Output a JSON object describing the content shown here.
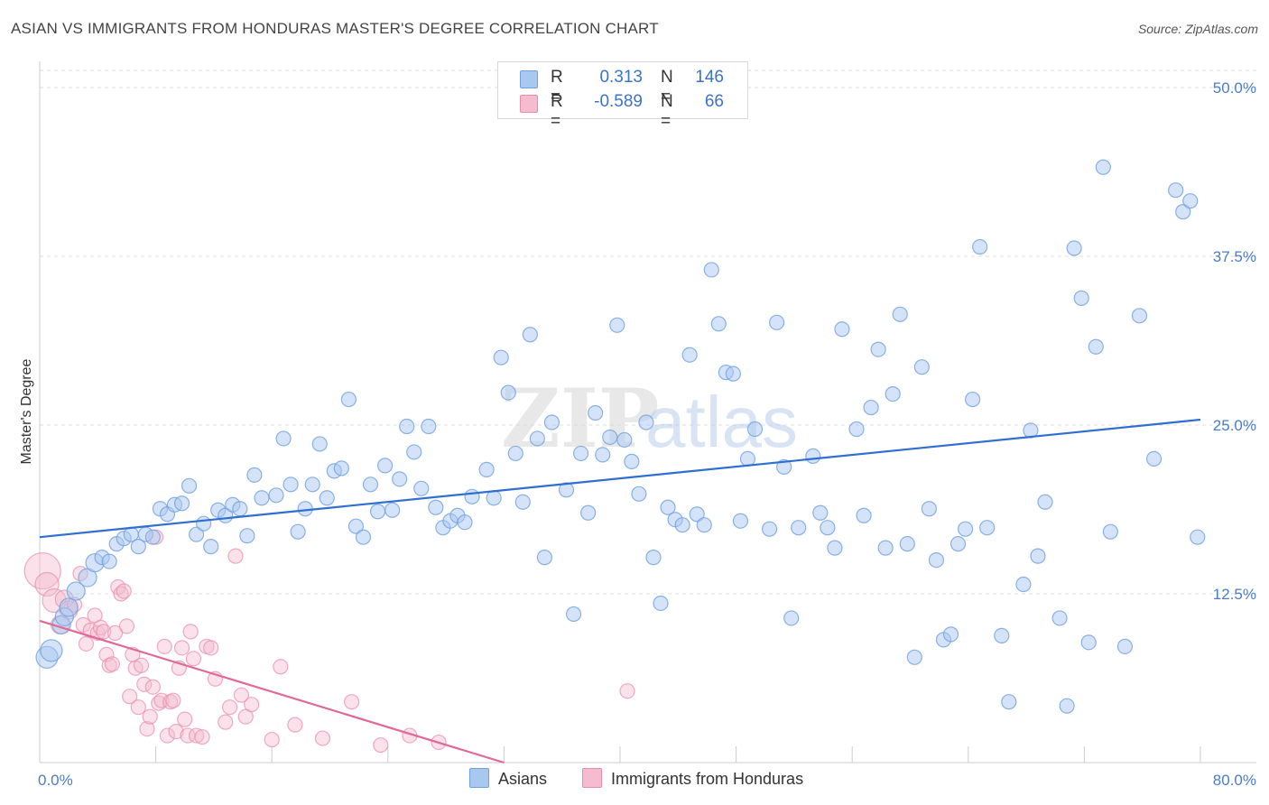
{
  "title": "ASIAN VS IMMIGRANTS FROM HONDURAS MASTER'S DEGREE CORRELATION CHART",
  "source": "Source: ZipAtlas.com",
  "watermark": {
    "zip": "ZIP",
    "atlas": "atlas"
  },
  "colors": {
    "asian": "#6fa0e0",
    "asian_fill": "#a9c8f0",
    "asian_line": "#2f6fd1",
    "honduras": "#e88aaa",
    "honduras_fill": "#f5bcd0",
    "honduras_line": "#e06a95",
    "tick_label": "#4a7cc9"
  },
  "stats": [
    {
      "r_label": "R =",
      "r_value": "0.313",
      "n_label": "N =",
      "n_value": "146"
    },
    {
      "r_label": "R =",
      "r_value": "-0.589",
      "n_label": "N =",
      "n_value": "66"
    }
  ],
  "legend": {
    "asian": "Asians",
    "honduras": "Immigrants from Honduras"
  },
  "chart_data": {
    "type": "scatter",
    "xlabel": "",
    "ylabel": "Master's Degree",
    "xlim": [
      0,
      80
    ],
    "ylim": [
      0,
      50
    ],
    "x_tick_labels": {
      "min": "0.0%",
      "max": "80.0%"
    },
    "y_ticks": [
      {
        "value": 50,
        "label": "50.0%"
      },
      {
        "value": 37.5,
        "label": "37.5%"
      },
      {
        "value": 25,
        "label": "25.0%"
      },
      {
        "value": 12.5,
        "label": "12.5%"
      }
    ],
    "grid": true,
    "legend_position": "bottom",
    "series": [
      {
        "name": "Asians",
        "trend": {
          "x1": 0,
          "y1": 16.7,
          "x2": 80,
          "y2": 25.4
        },
        "points": [
          [
            0.5,
            7.8
          ],
          [
            0.8,
            8.3
          ],
          [
            1.5,
            10.2
          ],
          [
            1.7,
            10.8
          ],
          [
            2,
            11.5
          ],
          [
            2.5,
            12.7
          ],
          [
            3.3,
            13.7
          ],
          [
            3.8,
            14.8
          ],
          [
            4.3,
            15.2
          ],
          [
            4.8,
            14.9
          ],
          [
            5.3,
            16.2
          ],
          [
            5.8,
            16.6
          ],
          [
            6.3,
            16.9
          ],
          [
            6.8,
            16
          ],
          [
            7.3,
            16.9
          ],
          [
            7.8,
            16.7
          ],
          [
            8.3,
            18.8
          ],
          [
            8.8,
            18.4
          ],
          [
            9.3,
            19.1
          ],
          [
            9.8,
            19.2
          ],
          [
            10.3,
            20.5
          ],
          [
            10.8,
            16.9
          ],
          [
            11.3,
            17.7
          ],
          [
            11.8,
            16
          ],
          [
            12.3,
            18.7
          ],
          [
            12.8,
            18.3
          ],
          [
            13.3,
            19.1
          ],
          [
            13.8,
            18.8
          ],
          [
            14.3,
            16.8
          ],
          [
            14.8,
            21.3
          ],
          [
            15.3,
            19.6
          ],
          [
            16.3,
            19.8
          ],
          [
            16.8,
            24
          ],
          [
            17.3,
            20.6
          ],
          [
            17.8,
            17.1
          ],
          [
            18.3,
            18.8
          ],
          [
            18.8,
            20.6
          ],
          [
            19.3,
            23.6
          ],
          [
            19.8,
            19.6
          ],
          [
            20.3,
            21.6
          ],
          [
            20.8,
            21.8
          ],
          [
            21.3,
            26.9
          ],
          [
            21.8,
            17.5
          ],
          [
            22.3,
            16.7
          ],
          [
            22.8,
            20.6
          ],
          [
            23.3,
            18.6
          ],
          [
            23.8,
            22
          ],
          [
            24.3,
            18.7
          ],
          [
            24.8,
            21
          ],
          [
            25.3,
            24.9
          ],
          [
            25.8,
            23
          ],
          [
            26.3,
            20.3
          ],
          [
            26.8,
            24.9
          ],
          [
            27.3,
            18.9
          ],
          [
            27.8,
            17.4
          ],
          [
            28.3,
            17.9
          ],
          [
            28.8,
            18.3
          ],
          [
            29.3,
            17.8
          ],
          [
            29.8,
            19.7
          ],
          [
            30.8,
            21.7
          ],
          [
            31.3,
            19.6
          ],
          [
            31.8,
            30
          ],
          [
            32.3,
            27.4
          ],
          [
            32.8,
            22.9
          ],
          [
            33.3,
            19.3
          ],
          [
            33.8,
            31.7
          ],
          [
            34.3,
            24
          ],
          [
            34.8,
            15.2
          ],
          [
            35.3,
            25.2
          ],
          [
            36.3,
            20.2
          ],
          [
            36.8,
            11
          ],
          [
            37.3,
            22.9
          ],
          [
            37.8,
            18.5
          ],
          [
            38.3,
            25.9
          ],
          [
            38.8,
            22.8
          ],
          [
            39.3,
            24.1
          ],
          [
            39.8,
            32.4
          ],
          [
            40.3,
            23.9
          ],
          [
            40.8,
            22.3
          ],
          [
            41.3,
            19.9
          ],
          [
            41.8,
            25.2
          ],
          [
            42.3,
            15.2
          ],
          [
            42.8,
            11.8
          ],
          [
            43.3,
            18.9
          ],
          [
            43.8,
            18
          ],
          [
            44.3,
            17.6
          ],
          [
            44.8,
            30.2
          ],
          [
            45.3,
            18.4
          ],
          [
            45.8,
            17.6
          ],
          [
            46.3,
            36.5
          ],
          [
            46.8,
            32.5
          ],
          [
            47.3,
            28.9
          ],
          [
            47.8,
            28.8
          ],
          [
            48.3,
            17.9
          ],
          [
            48.8,
            22.5
          ],
          [
            49.3,
            24.7
          ],
          [
            50.3,
            17.3
          ],
          [
            50.8,
            32.6
          ],
          [
            51.3,
            21.9
          ],
          [
            51.8,
            10.7
          ],
          [
            52.3,
            17.4
          ],
          [
            53.3,
            22.7
          ],
          [
            53.8,
            18.5
          ],
          [
            54.3,
            17.4
          ],
          [
            54.8,
            15.9
          ],
          [
            55.3,
            32.1
          ],
          [
            56.3,
            24.7
          ],
          [
            56.8,
            18.3
          ],
          [
            57.3,
            26.3
          ],
          [
            57.8,
            30.6
          ],
          [
            58.3,
            15.9
          ],
          [
            58.8,
            27.3
          ],
          [
            59.3,
            33.2
          ],
          [
            59.8,
            16.2
          ],
          [
            60.3,
            7.8
          ],
          [
            60.8,
            29.3
          ],
          [
            61.3,
            18.8
          ],
          [
            61.8,
            15
          ],
          [
            62.3,
            9.1
          ],
          [
            62.8,
            9.5
          ],
          [
            63.3,
            16.2
          ],
          [
            63.8,
            17.3
          ],
          [
            64.3,
            26.9
          ],
          [
            64.8,
            38.2
          ],
          [
            65.3,
            17.4
          ],
          [
            66.3,
            9.4
          ],
          [
            66.8,
            4.5
          ],
          [
            67.8,
            13.2
          ],
          [
            68.3,
            24.6
          ],
          [
            68.8,
            15.3
          ],
          [
            69.3,
            19.3
          ],
          [
            70.3,
            10.7
          ],
          [
            70.8,
            4.2
          ],
          [
            71.3,
            38.1
          ],
          [
            71.8,
            34.4
          ],
          [
            72.3,
            8.9
          ],
          [
            72.8,
            30.8
          ],
          [
            73.3,
            44.1
          ],
          [
            73.8,
            17.1
          ],
          [
            74.8,
            8.6
          ],
          [
            75.8,
            33.1
          ],
          [
            76.8,
            22.5
          ],
          [
            78.3,
            42.4
          ],
          [
            78.8,
            40.8
          ],
          [
            79.3,
            41.6
          ],
          [
            79.8,
            16.7
          ]
        ]
      },
      {
        "name": "Immigrants from Honduras",
        "trend": {
          "x1": 0,
          "y1": 10.5,
          "x2": 32,
          "y2": 0
        },
        "points": [
          [
            0.2,
            14.2
          ],
          [
            0.5,
            13.2
          ],
          [
            1,
            12
          ],
          [
            1.4,
            10.2
          ],
          [
            1.7,
            12.1
          ],
          [
            2,
            11.3
          ],
          [
            2.4,
            11.7
          ],
          [
            2.8,
            14
          ],
          [
            3,
            10.2
          ],
          [
            3.2,
            8.8
          ],
          [
            3.5,
            9.8
          ],
          [
            3.8,
            10.9
          ],
          [
            4,
            9.6
          ],
          [
            4.2,
            10
          ],
          [
            4.4,
            9.7
          ],
          [
            4.6,
            8
          ],
          [
            4.8,
            7.2
          ],
          [
            5,
            7.3
          ],
          [
            5.2,
            9.6
          ],
          [
            5.4,
            13
          ],
          [
            5.6,
            12.5
          ],
          [
            5.8,
            12.7
          ],
          [
            6,
            10.1
          ],
          [
            6.2,
            4.9
          ],
          [
            6.4,
            8
          ],
          [
            6.6,
            7
          ],
          [
            6.8,
            4.1
          ],
          [
            7,
            7.2
          ],
          [
            7.2,
            5.8
          ],
          [
            7.4,
            2.5
          ],
          [
            7.6,
            3.4
          ],
          [
            7.8,
            5.6
          ],
          [
            8,
            16.7
          ],
          [
            8.2,
            4.4
          ],
          [
            8.4,
            4.6
          ],
          [
            8.6,
            8.6
          ],
          [
            8.8,
            2
          ],
          [
            9,
            4.5
          ],
          [
            9.2,
            4.6
          ],
          [
            9.4,
            2.3
          ],
          [
            9.6,
            7
          ],
          [
            9.8,
            8.5
          ],
          [
            10,
            3.2
          ],
          [
            10.2,
            2
          ],
          [
            10.4,
            9.7
          ],
          [
            10.6,
            7.7
          ],
          [
            10.8,
            2
          ],
          [
            11.2,
            1.9
          ],
          [
            11.5,
            8.6
          ],
          [
            11.8,
            8.5
          ],
          [
            12.1,
            6.2
          ],
          [
            12.8,
            3
          ],
          [
            13.1,
            4.1
          ],
          [
            13.5,
            15.3
          ],
          [
            13.9,
            5
          ],
          [
            14.2,
            3.4
          ],
          [
            14.6,
            4.3
          ],
          [
            16,
            1.7
          ],
          [
            16.6,
            7.1
          ],
          [
            17.6,
            2.8
          ],
          [
            19.5,
            1.8
          ],
          [
            21.5,
            4.5
          ],
          [
            23.5,
            1.3
          ],
          [
            25.5,
            2
          ],
          [
            27.5,
            1.5
          ],
          [
            40.5,
            5.3
          ]
        ]
      }
    ]
  }
}
